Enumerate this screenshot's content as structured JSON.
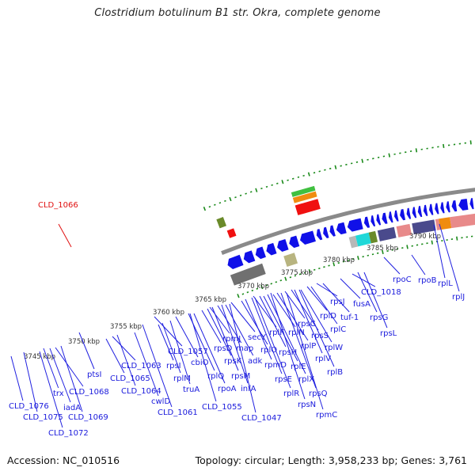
{
  "title": "Clostridium botulinum B1 str. Okra, complete genome",
  "footer": {
    "accession": "Accession: NC_010516",
    "summary": "Topology: circular; Length: 3,958,233 bp; Genes: 3,761"
  },
  "colors": {
    "backbone": "#8a8a8a",
    "tick": "#1a8a1a",
    "gene_arrow": "#1010e8",
    "label_line": "#2020e0",
    "label_text": "#1a1adc",
    "highlight_label": "#e01010",
    "cog_pink": "#e88a8a",
    "cog_orange": "#f08c10",
    "cog_navy": "#4a4a8c",
    "cog_cyan": "#20d8d8",
    "cog_olive": "#6a8a2a",
    "cog_lime": "#90e030",
    "cog_skyblue": "#10b0f0",
    "cog_grey": "#b8b8b8",
    "cog_darkgrey": "#707070",
    "cog_khaki": "#b8b480",
    "cog_green": "#40c040",
    "cog_red": "#f01010"
  },
  "kbp_markers": [
    {
      "label": "3745 kbp"
    },
    {
      "label": "3750 kbp"
    },
    {
      "label": "3755 kbp"
    },
    {
      "label": "3760 kbp"
    },
    {
      "label": "3765 kbp"
    },
    {
      "label": "3770 kbp"
    },
    {
      "label": "3775 kbp"
    },
    {
      "label": "3780 kbp"
    },
    {
      "label": "3785 kbp"
    },
    {
      "label": "3790 kbp"
    }
  ],
  "highlighted_gene": {
    "label": "CLD_1066"
  },
  "gene_labels": [
    {
      "label": "CLD_1076"
    },
    {
      "label": "CLD_1075"
    },
    {
      "label": "CLD_1072"
    },
    {
      "label": "trx"
    },
    {
      "label": "iadA"
    },
    {
      "label": "CLD_1068"
    },
    {
      "label": "CLD_1069"
    },
    {
      "label": "ptsI"
    },
    {
      "label": "CLD_1063"
    },
    {
      "label": "CLD_1065"
    },
    {
      "label": "CLD_1064"
    },
    {
      "label": "cwlD"
    },
    {
      "label": "CLD_1061"
    },
    {
      "label": "rpsI"
    },
    {
      "label": "rplM"
    },
    {
      "label": "CLD_1057"
    },
    {
      "label": "truA"
    },
    {
      "label": "cbiO"
    },
    {
      "label": "rplQ"
    },
    {
      "label": "rpoA"
    },
    {
      "label": "CLD_1055"
    },
    {
      "label": "rpsD"
    },
    {
      "label": "rpsK"
    },
    {
      "label": "rpsM"
    },
    {
      "label": "rpmJ"
    },
    {
      "label": "map"
    },
    {
      "label": "infA"
    },
    {
      "label": "adk"
    },
    {
      "label": "secY"
    },
    {
      "label": "CLD_1047"
    },
    {
      "label": "rplO"
    },
    {
      "label": "rpmD"
    },
    {
      "label": "rpsE"
    },
    {
      "label": "rplR"
    },
    {
      "label": "rplF"
    },
    {
      "label": "rpsH"
    },
    {
      "label": "rplE"
    },
    {
      "label": "rplX"
    },
    {
      "label": "rpsN"
    },
    {
      "label": "rplN"
    },
    {
      "label": "rplP"
    },
    {
      "label": "rpsQ"
    },
    {
      "label": "rpmC"
    },
    {
      "label": "rpsC"
    },
    {
      "label": "rpsS"
    },
    {
      "label": "rplV"
    },
    {
      "label": "rplB"
    },
    {
      "label": "rplW"
    },
    {
      "label": "rplD"
    },
    {
      "label": "rplC"
    },
    {
      "label": "rpsJ"
    },
    {
      "label": "tuf-1"
    },
    {
      "label": "fusA"
    },
    {
      "label": "CLD_1018"
    },
    {
      "label": "rpsG"
    },
    {
      "label": "rpsL"
    },
    {
      "label": "rpoC"
    },
    {
      "label": "rpoB"
    },
    {
      "label": "rplL"
    },
    {
      "label": "rplJ"
    }
  ]
}
